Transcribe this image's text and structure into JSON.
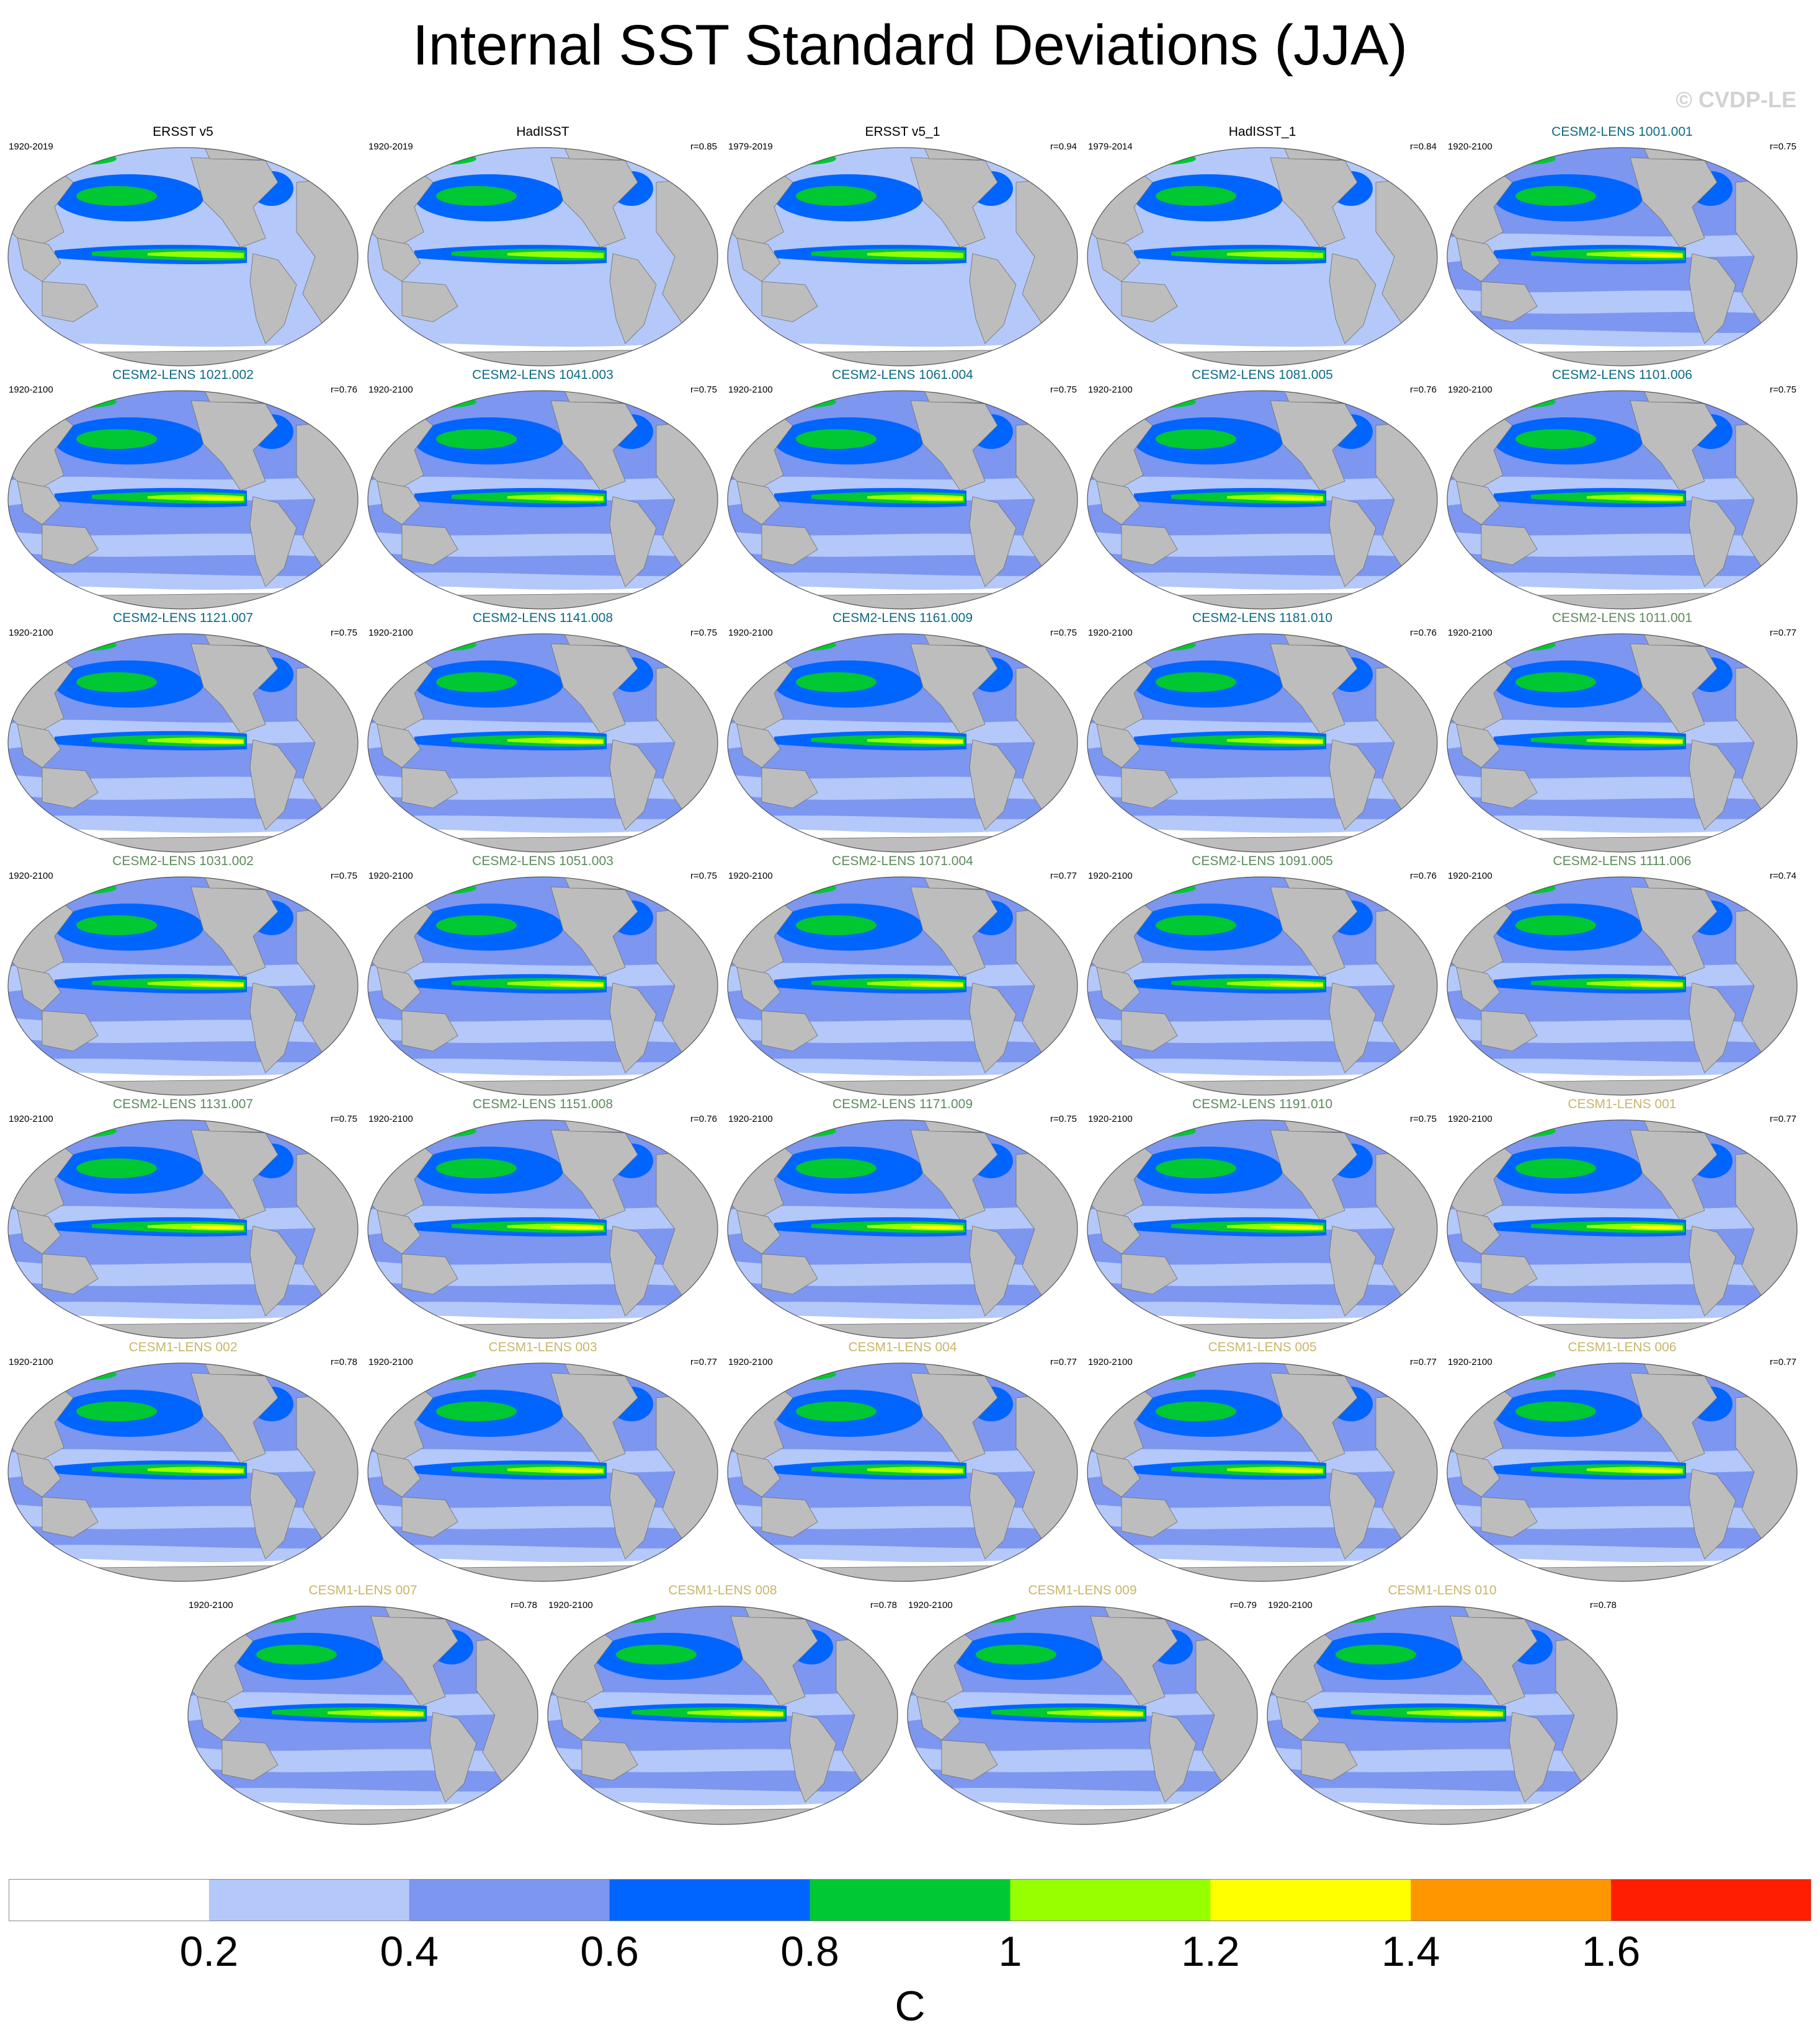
{
  "title": "Internal SST Standard Deviations (JJA)",
  "credit": "© CVDP-LE",
  "colors": {
    "land": "#bdbdbd",
    "observation_title": "#000000",
    "cesm2_1001_title": "#0b6a86",
    "cesm2_1011_title": "#5c8a5c",
    "cesm1_title": "#c9b56a"
  },
  "panels": [
    {
      "name": "ERSST v5",
      "years": "1920-2019",
      "r": "",
      "group": "observation"
    },
    {
      "name": "HadISST",
      "years": "1920-2019",
      "r": "r=0.85",
      "group": "observation"
    },
    {
      "name": "ERSST v5_1",
      "years": "1979-2019",
      "r": "r=0.94",
      "group": "observation"
    },
    {
      "name": "HadISST_1",
      "years": "1979-2014",
      "r": "r=0.84",
      "group": "observation"
    },
    {
      "name": "CESM2-LENS 1001.001",
      "years": "1920-2100",
      "r": "r=0.75",
      "group": "cesm2_1001"
    },
    {
      "name": "CESM2-LENS 1021.002",
      "years": "1920-2100",
      "r": "r=0.76",
      "group": "cesm2_1001"
    },
    {
      "name": "CESM2-LENS 1041.003",
      "years": "1920-2100",
      "r": "r=0.75",
      "group": "cesm2_1001"
    },
    {
      "name": "CESM2-LENS 1061.004",
      "years": "1920-2100",
      "r": "r=0.75",
      "group": "cesm2_1001"
    },
    {
      "name": "CESM2-LENS 1081.005",
      "years": "1920-2100",
      "r": "r=0.76",
      "group": "cesm2_1001"
    },
    {
      "name": "CESM2-LENS 1101.006",
      "years": "1920-2100",
      "r": "r=0.75",
      "group": "cesm2_1001"
    },
    {
      "name": "CESM2-LENS 1121.007",
      "years": "1920-2100",
      "r": "r=0.75",
      "group": "cesm2_1001"
    },
    {
      "name": "CESM2-LENS 1141.008",
      "years": "1920-2100",
      "r": "r=0.75",
      "group": "cesm2_1001"
    },
    {
      "name": "CESM2-LENS 1161.009",
      "years": "1920-2100",
      "r": "r=0.75",
      "group": "cesm2_1001"
    },
    {
      "name": "CESM2-LENS 1181.010",
      "years": "1920-2100",
      "r": "r=0.76",
      "group": "cesm2_1001"
    },
    {
      "name": "CESM2-LENS 1011.001",
      "years": "1920-2100",
      "r": "r=0.77",
      "group": "cesm2_1011"
    },
    {
      "name": "CESM2-LENS 1031.002",
      "years": "1920-2100",
      "r": "r=0.75",
      "group": "cesm2_1011"
    },
    {
      "name": "CESM2-LENS 1051.003",
      "years": "1920-2100",
      "r": "r=0.75",
      "group": "cesm2_1011"
    },
    {
      "name": "CESM2-LENS 1071.004",
      "years": "1920-2100",
      "r": "r=0.77",
      "group": "cesm2_1011"
    },
    {
      "name": "CESM2-LENS 1091.005",
      "years": "1920-2100",
      "r": "r=0.76",
      "group": "cesm2_1011"
    },
    {
      "name": "CESM2-LENS 1111.006",
      "years": "1920-2100",
      "r": "r=0.74",
      "group": "cesm2_1011"
    },
    {
      "name": "CESM2-LENS 1131.007",
      "years": "1920-2100",
      "r": "r=0.75",
      "group": "cesm2_1011"
    },
    {
      "name": "CESM2-LENS 1151.008",
      "years": "1920-2100",
      "r": "r=0.76",
      "group": "cesm2_1011"
    },
    {
      "name": "CESM2-LENS 1171.009",
      "years": "1920-2100",
      "r": "r=0.75",
      "group": "cesm2_1011"
    },
    {
      "name": "CESM2-LENS 1191.010",
      "years": "1920-2100",
      "r": "r=0.75",
      "group": "cesm2_1011"
    },
    {
      "name": "CESM1-LENS 001",
      "years": "1920-2100",
      "r": "r=0.77",
      "group": "cesm1"
    },
    {
      "name": "CESM1-LENS 002",
      "years": "1920-2100",
      "r": "r=0.78",
      "group": "cesm1"
    },
    {
      "name": "CESM1-LENS 003",
      "years": "1920-2100",
      "r": "r=0.77",
      "group": "cesm1"
    },
    {
      "name": "CESM1-LENS 004",
      "years": "1920-2100",
      "r": "r=0.77",
      "group": "cesm1"
    },
    {
      "name": "CESM1-LENS 005",
      "years": "1920-2100",
      "r": "r=0.77",
      "group": "cesm1"
    },
    {
      "name": "CESM1-LENS 006",
      "years": "1920-2100",
      "r": "r=0.77",
      "group": "cesm1"
    },
    {
      "name": "CESM1-LENS 007",
      "years": "1920-2100",
      "r": "r=0.78",
      "group": "cesm1"
    },
    {
      "name": "CESM1-LENS 008",
      "years": "1920-2100",
      "r": "r=0.78",
      "group": "cesm1"
    },
    {
      "name": "CESM1-LENS 009",
      "years": "1920-2100",
      "r": "r=0.79",
      "group": "cesm1"
    },
    {
      "name": "CESM1-LENS 010",
      "years": "1920-2100",
      "r": "r=0.78",
      "group": "cesm1"
    }
  ],
  "colorbar": {
    "units": "C",
    "labels": [
      "0.2",
      "0.4",
      "0.6",
      "0.8",
      "1",
      "1.2",
      "1.4",
      "1.6"
    ],
    "colors": [
      "#ffffff",
      "#b4c8fa",
      "#7d96f0",
      "#0064ff",
      "#00c832",
      "#96ff00",
      "#ffff00",
      "#ff9600",
      "#ff1e00"
    ]
  }
}
